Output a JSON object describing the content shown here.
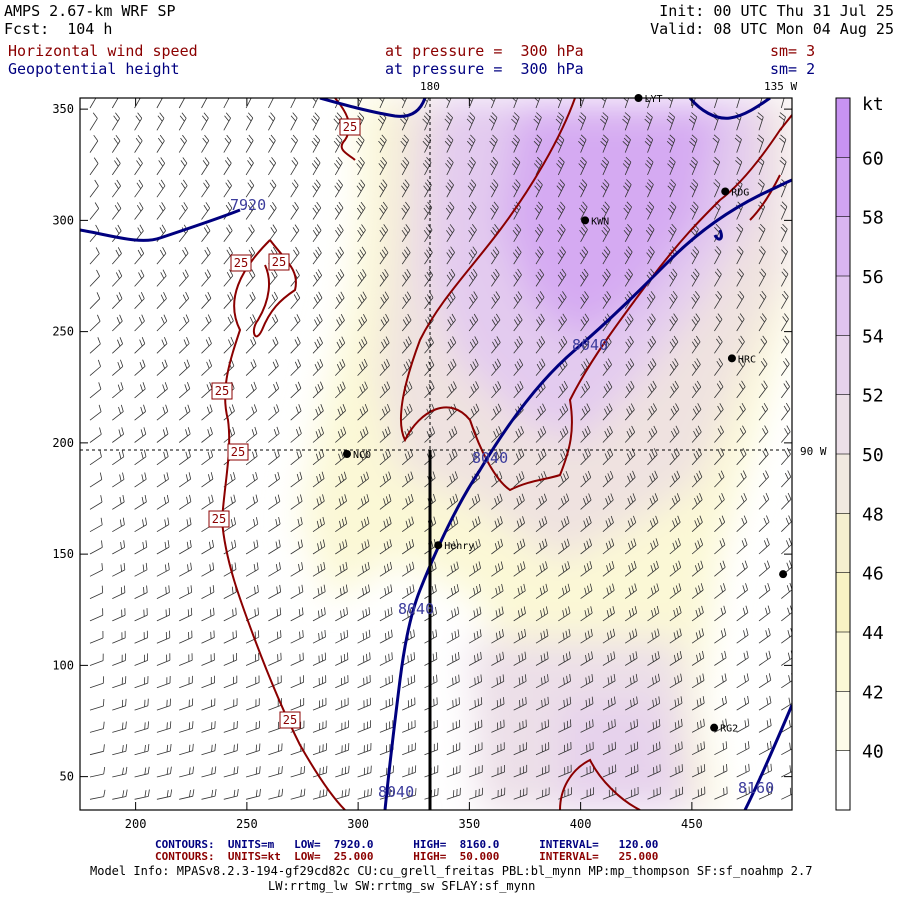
{
  "header": {
    "model": "AMPS 2.67-km WRF SP",
    "forecast": "Fcst:  104 h",
    "init": "Init: 00 UTC Thu 31 Jul 25",
    "valid": "Valid: 08 UTC Mon 04 Aug 25",
    "field1_name": "Horizontal wind speed",
    "field1_level": "at pressure =  300 hPa",
    "field1_smooth": "sm= 3",
    "field2_name": "Geopotential height",
    "field2_level": "at pressure =  300 hPa",
    "field2_smooth": "sm= 2"
  },
  "map": {
    "x_axis": {
      "min": 175,
      "max": 495,
      "ticks": [
        200,
        250,
        300,
        350,
        400,
        450
      ]
    },
    "y_axis": {
      "min": 35,
      "max": 355,
      "ticks": [
        50,
        100,
        150,
        200,
        250,
        300,
        350
      ]
    },
    "meridian_180_label": "180",
    "meridian_135w_label": "135 W",
    "meridian_90w_label": "90 W",
    "height_contour_labels": [
      "7920",
      "8040",
      "8040",
      "8040",
      "8040",
      "8160"
    ],
    "speed_contour_label": "25",
    "stations": [
      {
        "name": "LYT",
        "x": 426,
        "y": 355
      },
      {
        "name": "RDG",
        "x": 465,
        "y": 313
      },
      {
        "name": "KWN",
        "x": 402,
        "y": 300
      },
      {
        "name": "HRC",
        "x": 468,
        "y": 238
      },
      {
        "name": "NCO",
        "x": 295,
        "y": 195
      },
      {
        "name": "Henry",
        "x": 336,
        "y": 154
      },
      {
        "name": "RG2",
        "x": 460,
        "y": 72
      },
      {
        "name": "",
        "x": 491,
        "y": 141
      }
    ]
  },
  "colorbar": {
    "unit": "kt",
    "labels": [
      "60",
      "58",
      "56",
      "54",
      "52",
      "50",
      "48",
      "46",
      "44",
      "42",
      "40"
    ],
    "colors": [
      "#c893f2",
      "#d1a4f2",
      "#d9b5f1",
      "#e0c4ef",
      "#e6d2ec",
      "#ecdfe8",
      "#f1e9e0",
      "#f5efcf",
      "#f8f3c4",
      "#fbf8d6",
      "#fdfce9",
      "#ffffff"
    ]
  },
  "footer": {
    "contours_height": "CONTOURS:  UNITS=m   LOW=  7920.0      HIGH=  8160.0      INTERVAL=   120.00",
    "contours_speed": "CONTOURS:  UNITS=kt  LOW=  25.000      HIGH=  50.000      INTERVAL=   25.000",
    "model_info": "Model Info: MPASv8.2.3-194-gf29cd82c CU:cu_grell_freitas PBL:bl_mynn MP:mp_thompson SF:sf_noahmp 2.7",
    "model_info2": "LW:rrtmg_lw SW:rrtmg_sw SFLAY:sf_mynn"
  },
  "colors": {
    "height_contour": "#00007f",
    "speed_contour": "#8b0000",
    "header_field": "#8b0000",
    "header_level": "#000080"
  }
}
